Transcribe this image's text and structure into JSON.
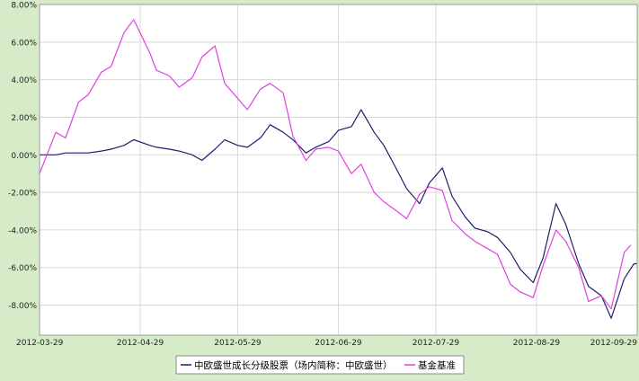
{
  "colors": {
    "background": "#d6ecc9",
    "plot_area": "#ffffff",
    "grid": "#d8d8d8",
    "fund": "#1f1f6b",
    "benchmark": "#e040e0"
  },
  "chart_data": {
    "type": "line",
    "title": "",
    "xlabel": "",
    "ylabel": "",
    "x_ticks": [
      "2012-03-29",
      "2012-04-29",
      "2012-05-29",
      "2012-06-29",
      "2012-07-29",
      "2012-08-29",
      "2012-09-29"
    ],
    "x_range": [
      "2012-03-29",
      "2012-09-29"
    ],
    "y_ticks": [
      "8.00%",
      "6.00%",
      "4.00%",
      "2.00%",
      "0.00%",
      "-2.00%",
      "-4.00%",
      "-6.00%",
      "-8.00%"
    ],
    "ylim": [
      -9.6,
      8.0
    ],
    "grid": true,
    "legend_position": "bottom",
    "series": [
      {
        "name": "中欧盛世成长分级股票（场内简称：中欧盛世）",
        "color": "#1f1f6b",
        "dates": [
          "2012-03-29",
          "2012-04-03",
          "2012-04-06",
          "2012-04-10",
          "2012-04-13",
          "2012-04-17",
          "2012-04-20",
          "2012-04-24",
          "2012-04-27",
          "2012-05-02",
          "2012-05-04",
          "2012-05-08",
          "2012-05-11",
          "2012-05-15",
          "2012-05-18",
          "2012-05-22",
          "2012-05-25",
          "2012-05-29",
          "2012-06-01",
          "2012-06-05",
          "2012-06-08",
          "2012-06-12",
          "2012-06-15",
          "2012-06-19",
          "2012-06-22",
          "2012-06-26",
          "2012-06-29",
          "2012-07-03",
          "2012-07-06",
          "2012-07-10",
          "2012-07-13",
          "2012-07-17",
          "2012-07-20",
          "2012-07-24",
          "2012-07-27",
          "2012-07-31",
          "2012-08-03",
          "2012-08-07",
          "2012-08-10",
          "2012-08-14",
          "2012-08-17",
          "2012-08-21",
          "2012-08-24",
          "2012-08-28",
          "2012-08-31",
          "2012-09-04",
          "2012-09-07",
          "2012-09-11",
          "2012-09-14",
          "2012-09-18",
          "2012-09-21",
          "2012-09-25",
          "2012-09-28",
          "2012-09-29"
        ],
        "values": [
          0.0,
          0.0,
          0.1,
          0.1,
          0.1,
          0.2,
          0.3,
          0.5,
          0.8,
          0.5,
          0.4,
          0.3,
          0.2,
          0.0,
          -0.3,
          0.3,
          0.8,
          0.5,
          0.4,
          0.9,
          1.6,
          1.2,
          0.8,
          0.1,
          0.4,
          0.7,
          1.3,
          1.5,
          2.4,
          1.2,
          0.5,
          -0.8,
          -1.8,
          -2.6,
          -1.5,
          -0.7,
          -2.2,
          -3.3,
          -3.9,
          -4.1,
          -4.4,
          -5.2,
          -6.1,
          -6.8,
          -5.5,
          -2.6,
          -3.7,
          -5.8,
          -7.0,
          -7.5,
          -8.7,
          -6.6,
          -5.8,
          -5.8
        ]
      },
      {
        "name": "基金基准",
        "color": "#e040e0",
        "dates": [
          "2012-03-29",
          "2012-04-03",
          "2012-04-06",
          "2012-04-10",
          "2012-04-13",
          "2012-04-17",
          "2012-04-20",
          "2012-04-24",
          "2012-04-27",
          "2012-05-02",
          "2012-05-04",
          "2012-05-08",
          "2012-05-11",
          "2012-05-15",
          "2012-05-18",
          "2012-05-22",
          "2012-05-25",
          "2012-05-29",
          "2012-06-01",
          "2012-06-05",
          "2012-06-08",
          "2012-06-12",
          "2012-06-15",
          "2012-06-19",
          "2012-06-22",
          "2012-06-26",
          "2012-06-29",
          "2012-07-03",
          "2012-07-06",
          "2012-07-10",
          "2012-07-13",
          "2012-07-17",
          "2012-07-20",
          "2012-07-24",
          "2012-07-27",
          "2012-07-31",
          "2012-08-03",
          "2012-08-07",
          "2012-08-10",
          "2012-08-14",
          "2012-08-17",
          "2012-08-21",
          "2012-08-24",
          "2012-08-28",
          "2012-08-31",
          "2012-09-04",
          "2012-09-07",
          "2012-09-11",
          "2012-09-14",
          "2012-09-18",
          "2012-09-21",
          "2012-09-25",
          "2012-09-27"
        ],
        "values": [
          -1.0,
          1.2,
          0.9,
          2.8,
          3.2,
          4.4,
          4.7,
          6.5,
          7.2,
          5.4,
          4.5,
          4.2,
          3.6,
          4.1,
          5.2,
          5.8,
          3.8,
          3.0,
          2.4,
          3.5,
          3.8,
          3.3,
          1.0,
          -0.3,
          0.3,
          0.4,
          0.2,
          -1.0,
          -0.5,
          -2.0,
          -2.5,
          -3.0,
          -3.4,
          -2.1,
          -1.7,
          -1.9,
          -3.5,
          -4.2,
          -4.6,
          -5.0,
          -5.3,
          -6.9,
          -7.3,
          -7.6,
          -5.9,
          -4.0,
          -4.6,
          -6.0,
          -7.8,
          -7.5,
          -8.2,
          -5.2,
          -4.8
        ]
      }
    ]
  }
}
